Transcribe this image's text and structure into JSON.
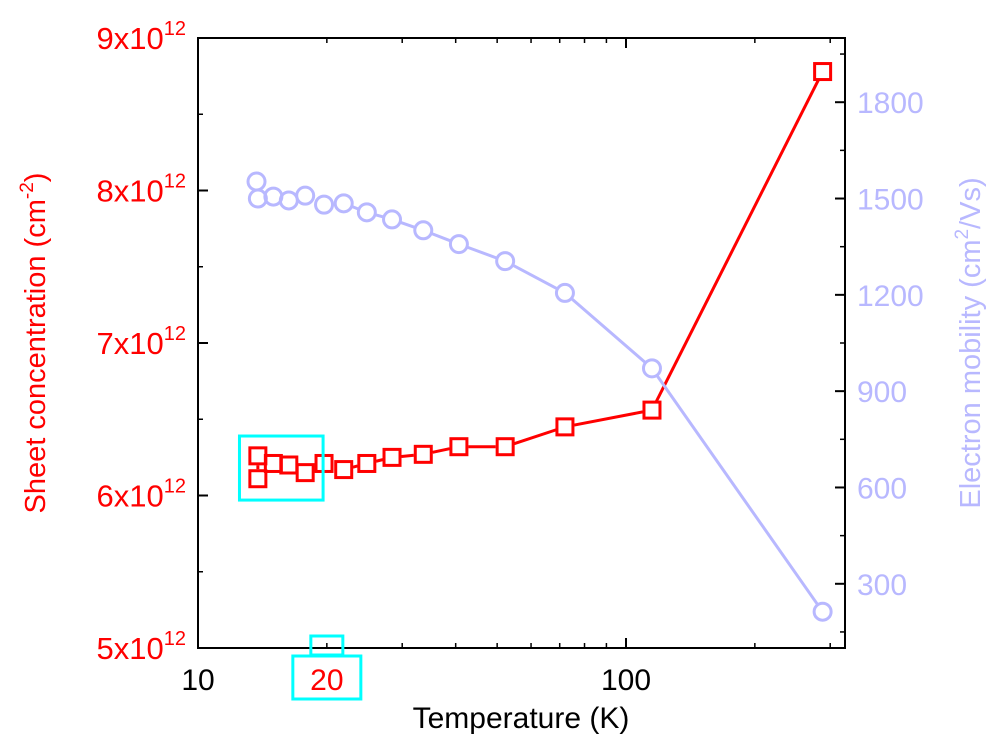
{
  "chart_data": {
    "type": "line",
    "xlabel": "Temperature (K)",
    "xscale": "log",
    "xlim": [
      10,
      325
    ],
    "xticks": [
      "10",
      "20",
      "100"
    ],
    "grid": false,
    "legend": "none",
    "left_axis": {
      "label_main": "Sheet concentration (cm",
      "label_sup": "-2",
      "label_end": ")",
      "ylim": [
        5000000000000.0,
        9000000000000.0
      ],
      "ticks": [
        {
          "mant": "5x10",
          "exp": "12",
          "value": 5000000000000.0
        },
        {
          "mant": "6x10",
          "exp": "12",
          "value": 6000000000000.0
        },
        {
          "mant": "7x10",
          "exp": "12",
          "value": 7000000000000.0
        },
        {
          "mant": "8x10",
          "exp": "12",
          "value": 8000000000000.0
        },
        {
          "mant": "9x10",
          "exp": "12",
          "value": 9000000000000.0
        }
      ],
      "color": "#ff0000"
    },
    "right_axis": {
      "label_main": "Electron mobility (cm",
      "label_sup": "2",
      "label_end": "/Vs)",
      "ylim": [
        100,
        2000
      ],
      "ticks": [
        "300",
        "600",
        "900",
        "1200",
        "1500",
        "1800"
      ],
      "color": "#b8b8ff"
    },
    "series": [
      {
        "name": "Sheet concentration",
        "axis": "left",
        "marker": "square",
        "color": "#ff0000",
        "x": [
          13.8,
          13.8,
          15.0,
          16.3,
          17.8,
          19.7,
          21.9,
          24.8,
          28.4,
          33.6,
          40.7,
          52.2,
          72,
          115,
          288
        ],
        "y": [
          6110000000000.0,
          6260000000000.0,
          6210000000000.0,
          6200000000000.0,
          6150000000000.0,
          6210000000000.0,
          6170000000000.0,
          6210000000000.0,
          6250000000000.0,
          6270000000000.0,
          6320000000000.0,
          6320000000000.0,
          6450000000000.0,
          6560000000000.0,
          8780000000000.0
        ]
      },
      {
        "name": "Electron mobility",
        "axis": "right",
        "marker": "circle",
        "color": "#b8b8ff",
        "x": [
          13.7,
          13.8,
          15.0,
          16.3,
          17.8,
          19.7,
          21.9,
          24.8,
          28.4,
          33.6,
          40.7,
          52.2,
          72,
          115,
          288
        ],
        "y": [
          1553,
          1500,
          1506,
          1494,
          1509,
          1481,
          1485,
          1457,
          1435,
          1401,
          1358,
          1305,
          1206,
          971,
          213
        ]
      }
    ],
    "annotations": {
      "highlight_color": "#00ffff",
      "highlight_x_range": [
        12.5,
        19.6
      ],
      "highlight_y_range": [
        5970000000000.0,
        6390000000000.0
      ],
      "highlight_tick": "20"
    }
  }
}
